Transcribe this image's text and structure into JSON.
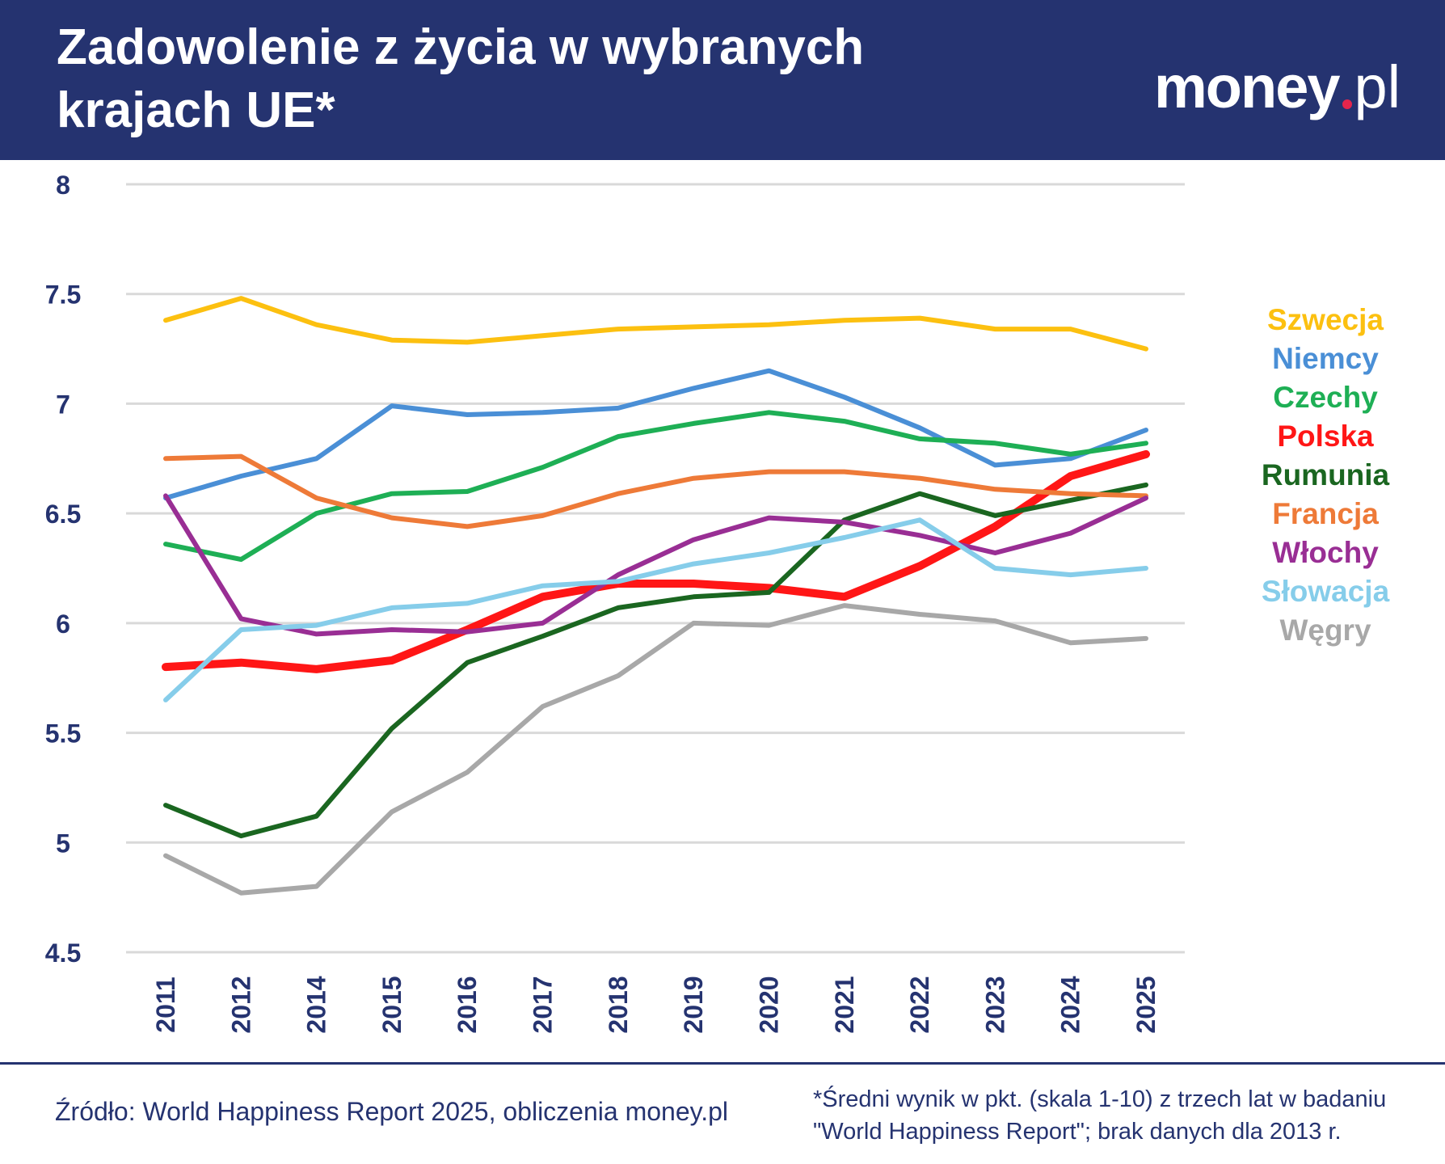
{
  "header": {
    "title": "Zadowolenie z życia w wybranych krajach UE*",
    "logo_main": "money",
    "logo_suffix": "pl"
  },
  "colors": {
    "header_bg": "#253370",
    "text_navy": "#253370",
    "logo_dot": "#e4254c",
    "grid": "#d9d9d9"
  },
  "chart_data": {
    "type": "line",
    "x": [
      "2011",
      "2012",
      "2014",
      "2015",
      "2016",
      "2017",
      "2018",
      "2019",
      "2020",
      "2021",
      "2022",
      "2023",
      "2024",
      "2025"
    ],
    "ylim": [
      4.5,
      8
    ],
    "yticks": [
      "4.5",
      "5",
      "5.5",
      "6",
      "6.5",
      "7",
      "7.5",
      "8"
    ],
    "grid": true,
    "legend_position": "right",
    "series": [
      {
        "name": "Szwecja",
        "color": "#fcc010",
        "values": [
          7.38,
          7.48,
          7.36,
          7.29,
          7.28,
          7.31,
          7.34,
          7.35,
          7.36,
          7.38,
          7.39,
          7.34,
          7.34,
          7.25
        ]
      },
      {
        "name": "Niemcy",
        "color": "#4a8fd6",
        "values": [
          6.57,
          6.67,
          6.75,
          6.99,
          6.95,
          6.96,
          6.98,
          7.07,
          7.15,
          7.03,
          6.89,
          6.72,
          6.75,
          6.88
        ]
      },
      {
        "name": "Czechy",
        "color": "#1eaf55",
        "values": [
          6.36,
          6.29,
          6.5,
          6.59,
          6.6,
          6.71,
          6.85,
          6.91,
          6.96,
          6.92,
          6.84,
          6.82,
          6.77,
          6.82
        ]
      },
      {
        "name": "Polska",
        "color": "#ff1616",
        "values": [
          5.8,
          5.82,
          5.79,
          5.83,
          5.97,
          6.12,
          6.18,
          6.18,
          6.16,
          6.12,
          6.26,
          6.44,
          6.67,
          6.77
        ]
      },
      {
        "name": "Rumunia",
        "color": "#1a6620",
        "values": [
          5.17,
          5.03,
          5.12,
          5.52,
          5.82,
          5.94,
          6.07,
          6.12,
          6.14,
          6.47,
          6.59,
          6.49,
          6.56,
          6.63
        ]
      },
      {
        "name": "Francja",
        "color": "#ee7a38",
        "values": [
          6.75,
          6.76,
          6.57,
          6.48,
          6.44,
          6.49,
          6.59,
          6.66,
          6.69,
          6.69,
          6.66,
          6.61,
          6.59,
          6.58
        ]
      },
      {
        "name": "Włochy",
        "color": "#992e94",
        "values": [
          6.58,
          6.02,
          5.95,
          5.97,
          5.96,
          6.0,
          6.22,
          6.38,
          6.48,
          6.46,
          6.4,
          6.32,
          6.41,
          6.57
        ]
      },
      {
        "name": "Słowacja",
        "color": "#86cdea",
        "values": [
          5.65,
          5.97,
          5.99,
          6.07,
          6.09,
          6.17,
          6.19,
          6.27,
          6.32,
          6.39,
          6.47,
          6.25,
          6.22,
          6.25
        ]
      },
      {
        "name": "Węgry",
        "color": "#a8a8a8",
        "values": [
          4.94,
          4.77,
          4.8,
          5.14,
          5.32,
          5.62,
          5.76,
          6.0,
          5.99,
          6.08,
          6.04,
          6.01,
          5.91,
          5.93
        ]
      }
    ]
  },
  "footer": {
    "source": "Źródło: World Happiness Report 2025, obliczenia money.pl",
    "note_line1": "*Średni wynik w pkt. (skala 1-10) z trzech lat w badaniu",
    "note_line2": "\"World Happiness Report\"; brak danych dla 2013 r."
  }
}
